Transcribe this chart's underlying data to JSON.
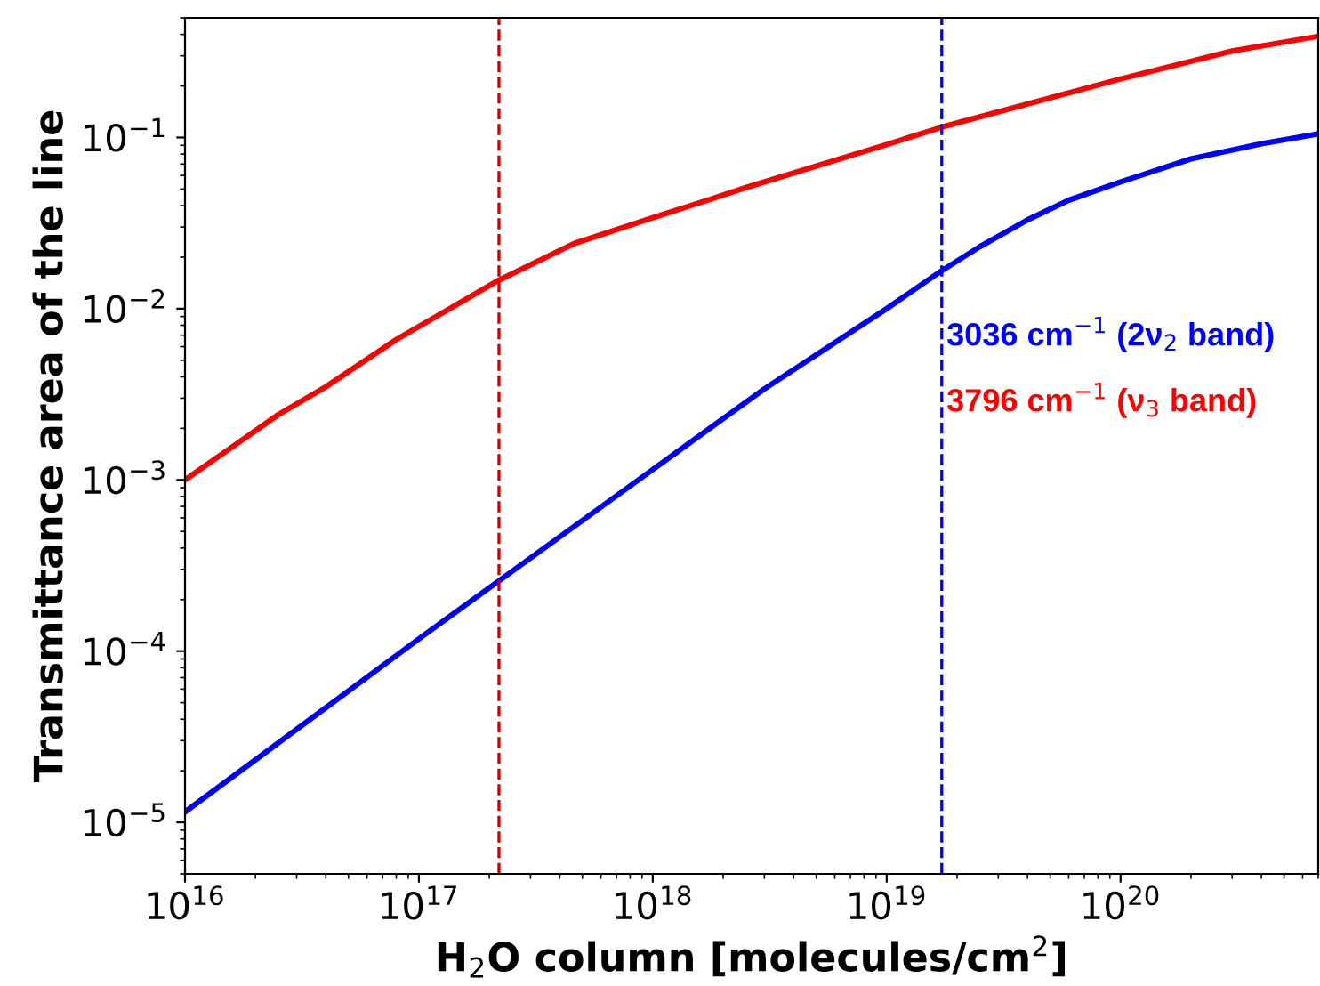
{
  "chart_data": {
    "type": "line",
    "xlabel": "H$_{2}$O column [molecules/cm$^{2}$]",
    "ylabel": "Transmittance area of the line",
    "log": "xy",
    "xlim": [
      1e+16,
      7e+20
    ],
    "ylim": [
      5e-06,
      0.5
    ],
    "xticks": [
      {
        "value": 1e+16,
        "label": "10$^{16}$"
      },
      {
        "value": 1e+17,
        "label": "10$^{17}$"
      },
      {
        "value": 1e+18,
        "label": "10$^{18}$"
      },
      {
        "value": 1e+19,
        "label": "10$^{19}$"
      },
      {
        "value": 1e+20,
        "label": "10$^{20}$"
      }
    ],
    "yticks": [
      {
        "value": 1e-05,
        "label": "10$^{−5}$"
      },
      {
        "value": 0.0001,
        "label": "10$^{−4}$"
      },
      {
        "value": 0.001,
        "label": "10$^{−3}$"
      },
      {
        "value": 0.01,
        "label": "10$^{−2}$"
      },
      {
        "value": 0.1,
        "label": "10$^{−1}$"
      }
    ],
    "grid": false,
    "legend": false,
    "line_style": "solid",
    "marker": "none",
    "series": [
      {
        "name": "3036 cm$^{−1}$ (2ν$_{2}$ band)",
        "color": "#0000ff",
        "x": [
          1e+16,
          1e+17,
          1e+18,
          3e+18,
          1e+19,
          1.7e+19,
          2.5e+19,
          4e+19,
          6e+19,
          1e+20,
          2e+20,
          4e+20,
          7e+20
        ],
        "values": [
          1.15e-05,
          0.000118,
          0.00115,
          0.0034,
          0.01,
          0.0165,
          0.023,
          0.033,
          0.043,
          0.055,
          0.075,
          0.092,
          0.105
        ]
      },
      {
        "name": "3796 cm$^{−1}$ (ν$_{3}$ band)",
        "color": "#ff0000",
        "x": [
          1e+16,
          2.5e+16,
          4e+16,
          8e+16,
          2.2e+17,
          4.6e+17,
          1e+18,
          1.8e+18,
          2.5e+18,
          1e+19,
          1.72e+19,
          1e+20,
          3e+20,
          7e+20
        ],
        "values": [
          0.001,
          0.0024,
          0.0035,
          0.0066,
          0.0147,
          0.024,
          0.034,
          0.044,
          0.051,
          0.091,
          0.115,
          0.22,
          0.32,
          0.39
        ]
      }
    ],
    "ref_lines": [
      {
        "axis": "x",
        "value": 2.2e+17,
        "color": "#cc0000",
        "line_style": "dashed"
      },
      {
        "axis": "x",
        "value": 1.72e+19,
        "color": "#0000ff",
        "line_style": "dashed"
      }
    ]
  }
}
